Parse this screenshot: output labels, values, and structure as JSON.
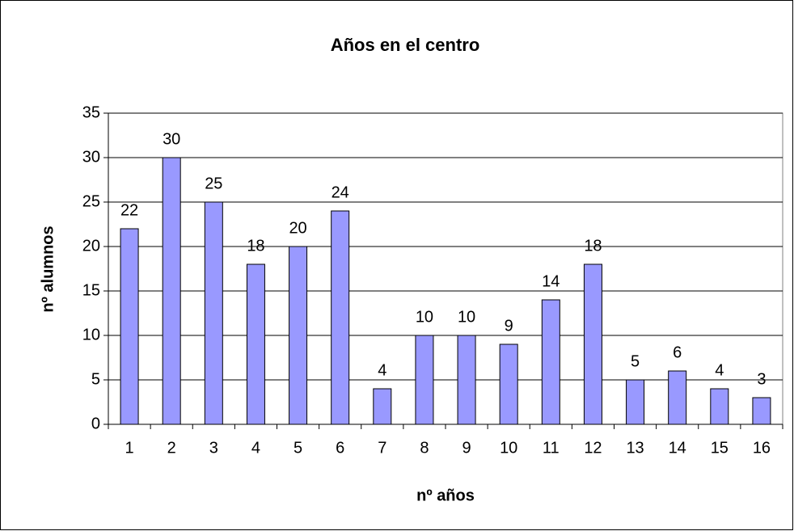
{
  "chart_data": {
    "type": "bar",
    "title": "Años en el centro",
    "x_label": "nº años",
    "y_label": "nº alumnos",
    "categories": [
      "1",
      "2",
      "3",
      "4",
      "5",
      "6",
      "7",
      "8",
      "9",
      "10",
      "11",
      "12",
      "13",
      "14",
      "15",
      "16"
    ],
    "values": [
      22,
      30,
      25,
      18,
      20,
      24,
      4,
      10,
      10,
      9,
      14,
      18,
      5,
      6,
      4,
      3
    ],
    "color": "#9999ff",
    "ylim": [
      0,
      35
    ],
    "yticks": [
      0,
      5,
      10,
      15,
      20,
      25,
      30,
      35
    ],
    "grid": true
  }
}
